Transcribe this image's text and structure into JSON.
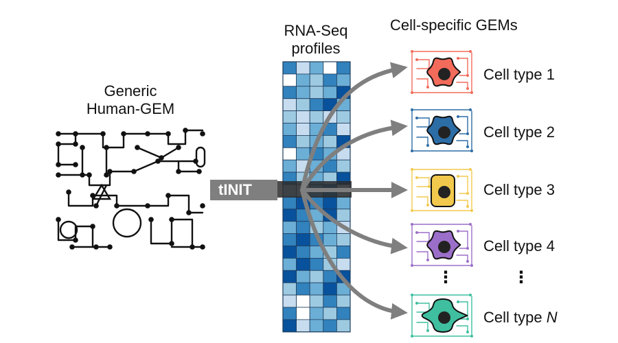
{
  "generic_model": {
    "line1": "Generic",
    "line2": "Human-GEM"
  },
  "rnaseq": {
    "line1": "RNA-Seq",
    "line2": "profiles"
  },
  "gems_title": "Cell-specific GEMs",
  "method_label": "tINIT",
  "cell_types": [
    {
      "prefix": "Cell type ",
      "index": "1",
      "color": "#f26b5b"
    },
    {
      "prefix": "Cell type ",
      "index": "2",
      "color": "#2c6da6"
    },
    {
      "prefix": "Cell type ",
      "index": "3",
      "color": "#f2c94c"
    },
    {
      "prefix": "Cell type ",
      "index": "4",
      "color": "#9b6fc9"
    },
    {
      "prefix": "Cell type ",
      "index": "N",
      "color": "#3fbf9f"
    }
  ],
  "ellipsis": "⋮",
  "colors": {
    "network": "#111111",
    "arrow": "#7f7f7f",
    "heatmap_scale": [
      "#ffffff",
      "#c7dcef",
      "#9ecae1",
      "#6baed6",
      "#3182bd",
      "#08519c"
    ]
  },
  "heatmap": {
    "rows": 22,
    "cols": 5,
    "levels": [
      [
        4,
        1,
        3,
        0,
        4
      ],
      [
        0,
        3,
        2,
        4,
        3
      ],
      [
        4,
        3,
        2,
        3,
        5
      ],
      [
        1,
        2,
        4,
        5,
        3
      ],
      [
        2,
        1,
        2,
        1,
        2
      ],
      [
        3,
        1,
        3,
        4,
        1
      ],
      [
        4,
        2,
        3,
        2,
        5
      ],
      [
        0,
        3,
        4,
        3,
        1
      ],
      [
        3,
        1,
        3,
        4,
        2
      ],
      [
        4,
        2,
        3,
        2,
        5
      ],
      [
        2,
        1,
        3,
        4,
        1
      ],
      [
        4,
        5,
        4,
        5,
        3
      ],
      [
        5,
        4,
        3,
        5,
        2
      ],
      [
        3,
        4,
        2,
        3,
        1
      ],
      [
        4,
        5,
        4,
        3,
        2
      ],
      [
        5,
        4,
        3,
        2,
        4
      ],
      [
        3,
        5,
        4,
        2,
        1
      ],
      [
        5,
        3,
        2,
        4,
        5
      ],
      [
        2,
        4,
        3,
        5,
        3
      ],
      [
        1,
        0,
        2,
        4,
        2
      ],
      [
        4,
        0,
        3,
        2,
        4
      ],
      [
        5,
        1,
        3,
        4,
        2
      ]
    ]
  }
}
